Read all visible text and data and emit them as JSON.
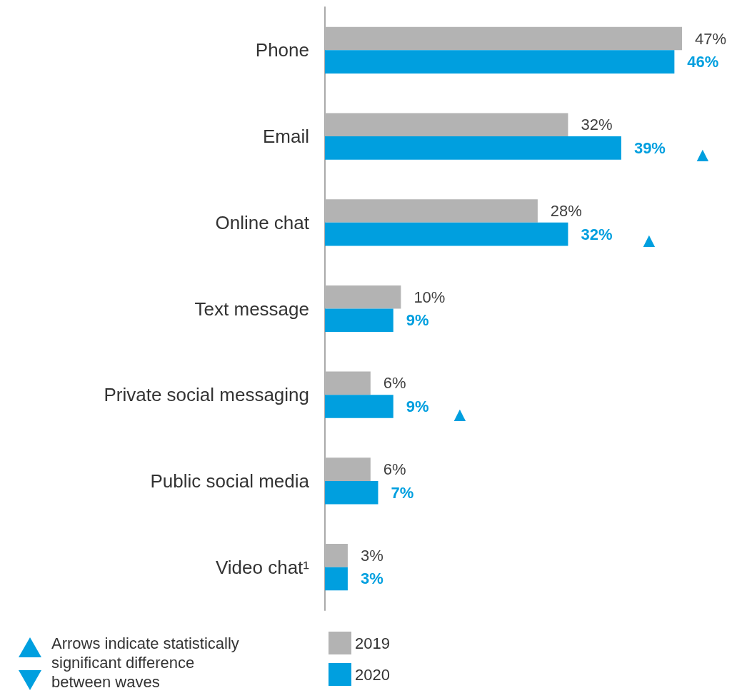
{
  "chart_data": {
    "type": "bar",
    "orientation": "horizontal",
    "categories": [
      "Phone",
      "Email",
      "Online chat",
      "Text message",
      "Private social messaging",
      "Public social media",
      "Video chat¹"
    ],
    "series": [
      {
        "name": "2019",
        "color": "#b3b3b3",
        "values": [
          47,
          32,
          28,
          10,
          6,
          6,
          3
        ],
        "value_labels": [
          "47%",
          "32%",
          "28%",
          "10%",
          "6%",
          "6%",
          "3%"
        ]
      },
      {
        "name": "2020",
        "color": "#009fdf",
        "values": [
          46,
          39,
          32,
          9,
          9,
          7,
          3
        ],
        "value_labels": [
          "46%",
          "39%",
          "32%",
          "9%",
          "9%",
          "7%",
          "3%"
        ]
      }
    ],
    "legend": "bottom",
    "grid": false,
    "annotations": [
      "▲",
      "▲",
      "▲",
      "Arrows indicate statistically significant difference between waves"
    ]
  }
}
